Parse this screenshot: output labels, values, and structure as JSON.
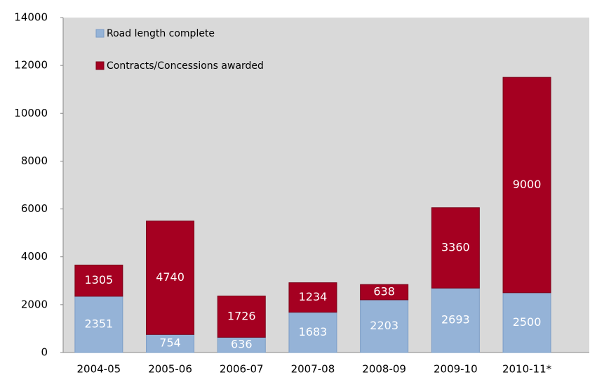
{
  "chart_data": {
    "type": "bar",
    "stacked": true,
    "categories": [
      "2004-05",
      "2005-06",
      "2006-07",
      "2007-08",
      "2008-09",
      "2009-10",
      "2010-11*"
    ],
    "series": [
      {
        "name": "Road length complete",
        "color": "#95b3d7",
        "values": [
          2351,
          754,
          636,
          1683,
          2203,
          2693,
          2500
        ]
      },
      {
        "name": "Contracts/Concessions awarded",
        "color": "#a50021",
        "values": [
          1305,
          4740,
          1726,
          1234,
          638,
          3360,
          9000
        ]
      }
    ],
    "ylim": [
      0,
      14000
    ],
    "yticks": [
      0,
      2000,
      4000,
      6000,
      8000,
      10000,
      12000,
      14000
    ],
    "grid": false,
    "legend": "top-left"
  }
}
